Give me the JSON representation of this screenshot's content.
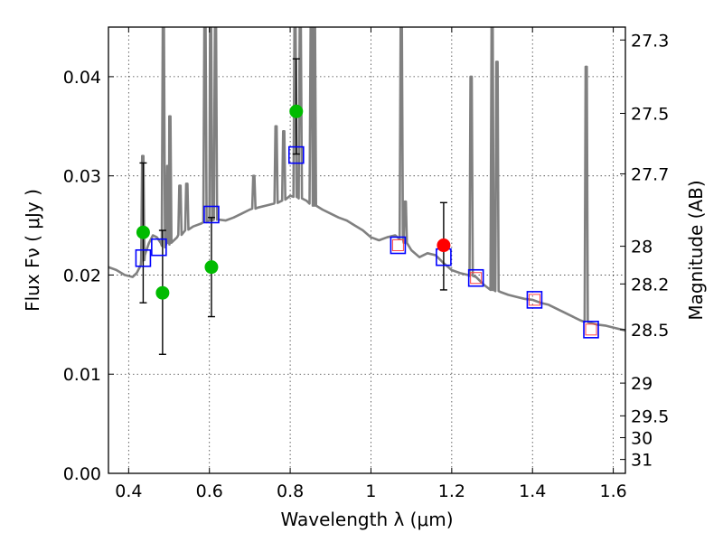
{
  "chart_data": {
    "type": "scatter",
    "xlabel": "Wavelength  λ (μm)",
    "ylabel": "Flux  Fν  ( μJy )",
    "ylabel_right": "Magnitude (AB)",
    "xlim": [
      0.35,
      1.63
    ],
    "ylim": [
      0.0,
      0.045
    ],
    "grid": true,
    "x_ticks": [
      0.4,
      0.6,
      0.8,
      1.0,
      1.2,
      1.4,
      1.6
    ],
    "x_tick_labels": [
      "0.4",
      "0.6",
      "0.8",
      "1",
      "1.2",
      "1.4",
      "1.6"
    ],
    "y_ticks": [
      0.0,
      0.01,
      0.02,
      0.03,
      0.04
    ],
    "y_tick_labels": [
      "0.00",
      "0.01",
      "0.02",
      "0.03",
      "0.04"
    ],
    "right_ticks": [
      {
        "label": "27.3",
        "flux": 0.0437
      },
      {
        "label": "27.5",
        "flux": 0.0363
      },
      {
        "label": "27.7",
        "flux": 0.0302
      },
      {
        "label": "28",
        "flux": 0.0229
      },
      {
        "label": "28.2",
        "flux": 0.0191
      },
      {
        "label": "28.5",
        "flux": 0.0145
      },
      {
        "label": "29",
        "flux": 0.0091
      },
      {
        "label": "29.5",
        "flux": 0.0058
      },
      {
        "label": "30",
        "flux": 0.0036
      },
      {
        "label": "31",
        "flux": 0.0014
      }
    ],
    "series": [
      {
        "name": "model_sed",
        "type": "line",
        "color": "#808080",
        "x": [
          0.35,
          0.37,
          0.39,
          0.41,
          0.42,
          0.43,
          0.44,
          0.45,
          0.46,
          0.47,
          0.48,
          0.49,
          0.5,
          0.52,
          0.54,
          0.56,
          0.58,
          0.6,
          0.62,
          0.64,
          0.66,
          0.68,
          0.7,
          0.72,
          0.74,
          0.76,
          0.78,
          0.8,
          0.82,
          0.84,
          0.86,
          0.88,
          0.9,
          0.92,
          0.94,
          0.96,
          0.98,
          1.0,
          1.02,
          1.04,
          1.06,
          1.08,
          1.1,
          1.12,
          1.14,
          1.16,
          1.18,
          1.2,
          1.22,
          1.24,
          1.26,
          1.28,
          1.3,
          1.32,
          1.34,
          1.36,
          1.38,
          1.4,
          1.42,
          1.44,
          1.46,
          1.48,
          1.5,
          1.52,
          1.54,
          1.56,
          1.58,
          1.6,
          1.63
        ],
        "y": [
          0.0208,
          0.0205,
          0.02,
          0.0198,
          0.0202,
          0.021,
          0.022,
          0.0232,
          0.024,
          0.0238,
          0.0232,
          0.0228,
          0.0232,
          0.0238,
          0.0245,
          0.0249,
          0.0252,
          0.0255,
          0.0256,
          0.0255,
          0.0258,
          0.0262,
          0.0266,
          0.0268,
          0.027,
          0.0272,
          0.0275,
          0.028,
          0.0278,
          0.0275,
          0.027,
          0.0266,
          0.0262,
          0.0258,
          0.0255,
          0.025,
          0.0245,
          0.0238,
          0.0235,
          0.0238,
          0.024,
          0.0235,
          0.0225,
          0.0218,
          0.0222,
          0.022,
          0.0212,
          0.0205,
          0.0202,
          0.02,
          0.0198,
          0.019,
          0.0185,
          0.0183,
          0.018,
          0.0178,
          0.0176,
          0.0175,
          0.0172,
          0.017,
          0.0166,
          0.0162,
          0.0158,
          0.0154,
          0.0152,
          0.015,
          0.0149,
          0.0147,
          0.0144
        ],
        "emission_lines": [
          {
            "x": 0.435,
            "peak": 0.032
          },
          {
            "x": 0.486,
            "peak": 0.045
          },
          {
            "x": 0.497,
            "peak": 0.031
          },
          {
            "x": 0.502,
            "peak": 0.036
          },
          {
            "x": 0.527,
            "peak": 0.029
          },
          {
            "x": 0.544,
            "peak": 0.0292
          },
          {
            "x": 0.589,
            "peak": 0.045
          },
          {
            "x": 0.603,
            "peak": 0.045
          },
          {
            "x": 0.615,
            "peak": 0.045
          },
          {
            "x": 0.71,
            "peak": 0.03
          },
          {
            "x": 0.765,
            "peak": 0.035
          },
          {
            "x": 0.784,
            "peak": 0.0345
          },
          {
            "x": 0.812,
            "peak": 0.045
          },
          {
            "x": 0.825,
            "peak": 0.045
          },
          {
            "x": 0.852,
            "peak": 0.045
          },
          {
            "x": 0.86,
            "peak": 0.045
          },
          {
            "x": 1.075,
            "peak": 0.045
          },
          {
            "x": 1.085,
            "peak": 0.0274
          },
          {
            "x": 1.248,
            "peak": 0.04
          },
          {
            "x": 1.3,
            "peak": 0.045
          },
          {
            "x": 1.312,
            "peak": 0.0415
          },
          {
            "x": 1.533,
            "peak": 0.041
          }
        ]
      },
      {
        "name": "observed_green",
        "type": "scatter",
        "color": "#00bb00",
        "x": [
          0.436,
          0.484,
          0.605,
          0.815
        ],
        "y": [
          0.0243,
          0.0182,
          0.0208,
          0.0365
        ],
        "err_low": [
          0.0172,
          0.012,
          0.0158,
          0.0322
        ],
        "err_high": [
          0.0313,
          0.0245,
          0.0258,
          0.0418
        ]
      },
      {
        "name": "observed_red",
        "type": "scatter",
        "color": "#ff0000",
        "x": [
          1.18
        ],
        "y": [
          0.023
        ],
        "err_low": [
          0.0185
        ],
        "err_high": [
          0.0273
        ]
      },
      {
        "name": "model_blue_squares",
        "type": "scatter",
        "color": "#0000ff",
        "x": [
          0.436,
          0.475,
          0.605,
          0.815,
          1.067,
          1.18,
          1.26,
          1.405,
          1.545
        ],
        "y": [
          0.0217,
          0.0228,
          0.0261,
          0.0321,
          0.023,
          0.0218,
          0.0197,
          0.0175,
          0.0145
        ]
      },
      {
        "name": "model_red_squares",
        "type": "scatter",
        "color": "#ff4444",
        "x": [
          1.067,
          1.26,
          1.405,
          1.545
        ],
        "y": [
          0.023,
          0.0197,
          0.0175,
          0.0145
        ]
      }
    ]
  }
}
